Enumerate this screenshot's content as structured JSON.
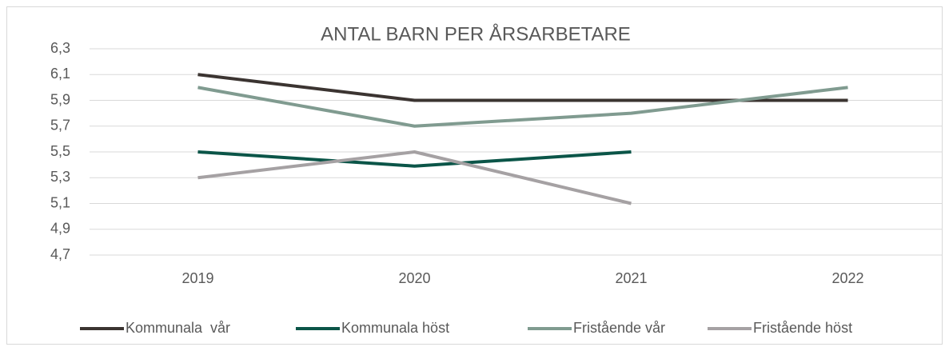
{
  "chart_data": {
    "type": "line",
    "title": "ANTAL BARN PER ÅRSARBETARE",
    "categories": [
      "2019",
      "2020",
      "2021",
      "2022"
    ],
    "series": [
      {
        "name": "Kommunala  vår",
        "color": "#3b3431",
        "values": [
          6.1,
          5.9,
          5.9,
          5.9
        ]
      },
      {
        "name": "Kommunala höst",
        "color": "#0b5548",
        "values": [
          5.5,
          5.39,
          5.5,
          null
        ]
      },
      {
        "name": "Fristående vår",
        "color": "#809b90",
        "values": [
          6.0,
          5.7,
          5.8,
          6.0
        ]
      },
      {
        "name": "Fristående höst",
        "color": "#a5a1a3",
        "values": [
          5.3,
          5.5,
          5.1,
          null
        ]
      }
    ],
    "ylim": [
      4.7,
      6.3
    ],
    "yticks": [
      {
        "value": 4.7,
        "label": "4,7"
      },
      {
        "value": 4.9,
        "label": "4,9"
      },
      {
        "value": 5.1,
        "label": "5,1"
      },
      {
        "value": 5.3,
        "label": "5,3"
      },
      {
        "value": 5.5,
        "label": "5,5"
      },
      {
        "value": 5.7,
        "label": "5,7"
      },
      {
        "value": 5.9,
        "label": "5,9"
      },
      {
        "value": 6.1,
        "label": "6,1"
      },
      {
        "value": 6.3,
        "label": "6,3"
      }
    ],
    "grid": true,
    "legend": "bottom"
  }
}
